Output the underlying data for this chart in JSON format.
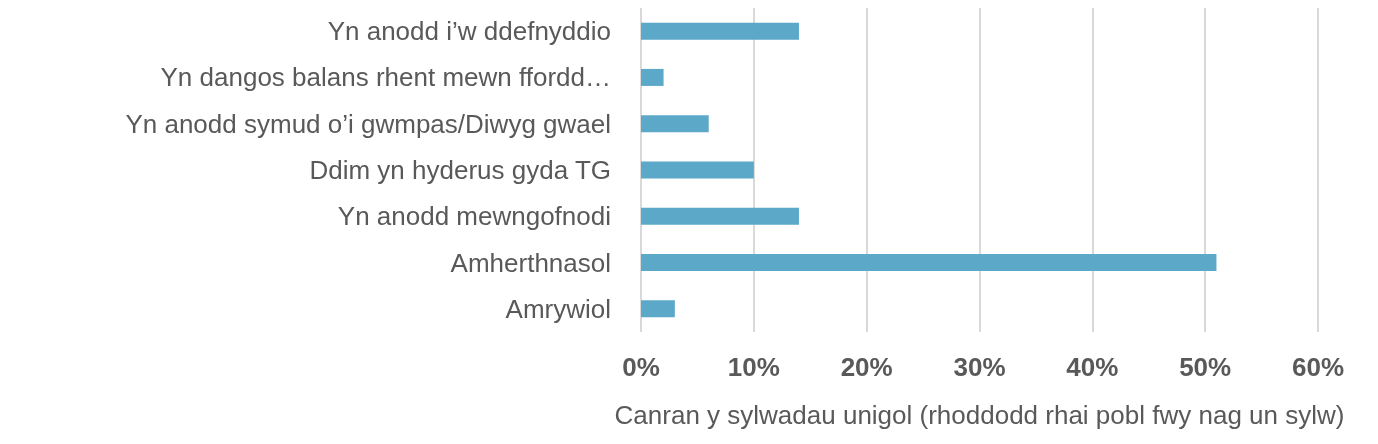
{
  "chart_data": {
    "type": "bar",
    "orientation": "horizontal",
    "xlabel": "Canran y sylwadau unigol (rhoddodd rhai pobl fwy nag un sylw)",
    "categories": [
      "Yn anodd i’w ddefnyddio",
      "Yn dangos balans rhent mewn ffordd…",
      "Yn anodd symud o’i gwmpas/Diwyg gwael",
      "Ddim yn hyderus gyda TG",
      "Yn anodd mewngofnodi",
      "Amherthnasol",
      "Amrywiol"
    ],
    "values": [
      14,
      2,
      6,
      10,
      14,
      51,
      3
    ],
    "color": "#5ba8c8",
    "xlim": [
      0,
      60
    ],
    "xticks": [
      {
        "value": 0,
        "label": "0%"
      },
      {
        "value": 10,
        "label": "10%"
      },
      {
        "value": 20,
        "label": "20%"
      },
      {
        "value": 30,
        "label": "30%"
      },
      {
        "value": 40,
        "label": "40%"
      },
      {
        "value": 50,
        "label": "50%"
      },
      {
        "value": 60,
        "label": "60%"
      }
    ],
    "grid": "x"
  }
}
